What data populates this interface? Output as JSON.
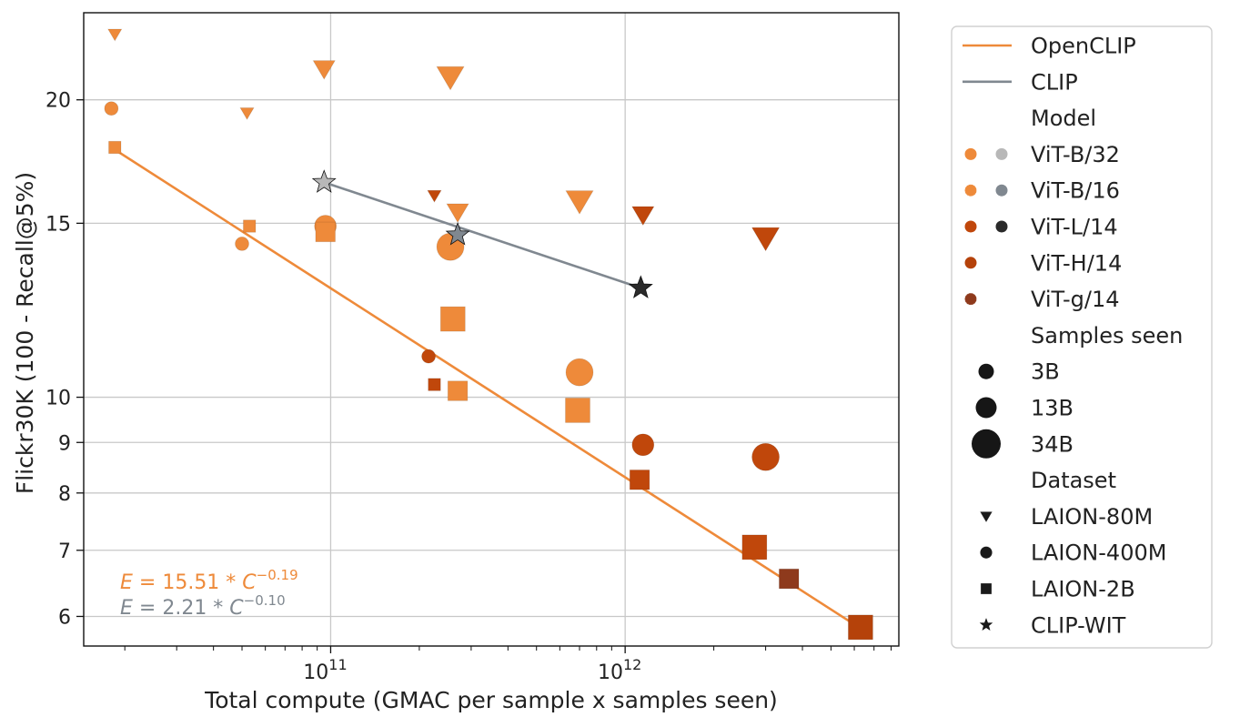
{
  "chart_data": {
    "type": "scatter",
    "xlabel": "Total compute (GMAC per sample x samples seen)",
    "ylabel": "Flickr30K (100 - Recall@5%)",
    "xscale": "log",
    "yscale": "log",
    "xlim": [
      14500000000.0,
      8500000000000.0
    ],
    "ylim": [
      5.6,
      24.5
    ],
    "grid": true,
    "xticks": [
      {
        "value": 100000000000.0,
        "base": "10",
        "exp": "11"
      },
      {
        "value": 1000000000000.0,
        "base": "10",
        "exp": "12"
      }
    ],
    "yticks": [
      {
        "value": 6,
        "label": "6"
      },
      {
        "value": 7,
        "label": "7"
      },
      {
        "value": 8,
        "label": "8"
      },
      {
        "value": 9,
        "label": "9"
      },
      {
        "value": 10,
        "label": "10"
      },
      {
        "value": 15,
        "label": "15"
      },
      {
        "value": 20,
        "label": "20"
      }
    ],
    "colors": {
      "vit_b32_open": "#EE8A3A",
      "vit_b16_open": "#EE8A3A",
      "vit_l14_open": "#C0470B",
      "vit_h14_open": "#B5420A",
      "vit_g14_open": "#8E3A1C",
      "vit_b32_clip": "#B8B8B8",
      "vit_b16_clip": "#808890",
      "vit_l14_clip": "#2A2A2A",
      "openclip_line": "#EE8A3A",
      "clip_line": "#808890"
    },
    "fit_lines": [
      {
        "name": "OpenCLIP",
        "color": "#EE8A3A",
        "x": [
          18000000000.0,
          6500000000000.0
        ],
        "y": [
          17.9,
          5.8
        ]
      },
      {
        "name": "CLIP",
        "color": "#808890",
        "x": [
          95000000000.0,
          1130000000000.0
        ],
        "y": [
          16.5,
          12.9
        ]
      }
    ],
    "equations": [
      {
        "lhs": "E",
        "rest": " = 15.51 * ",
        "var": "C",
        "exp": "−0.19",
        "color": "#EE8A3A",
        "italic": true
      },
      {
        "lhs": "E",
        "rest": " = 2.21 * ",
        "var": "C",
        "exp": "−0.10",
        "color": "#808890",
        "italic": false
      }
    ],
    "points": [
      {
        "model": "ViT-B/32",
        "samples": "3B",
        "dataset": "LAION-80M",
        "x": 18500000000.0,
        "y": 23.3,
        "color": "#EE8A3A"
      },
      {
        "model": "ViT-B/32",
        "samples": "3B",
        "dataset": "LAION-400M",
        "x": 18000000000.0,
        "y": 19.6,
        "color": "#EE8A3A"
      },
      {
        "model": "ViT-B/32",
        "samples": "3B",
        "dataset": "LAION-2B",
        "x": 18500000000.0,
        "y": 17.9,
        "color": "#EE8A3A"
      },
      {
        "model": "ViT-B/16",
        "samples": "3B",
        "dataset": "LAION-80M",
        "x": 52000000000.0,
        "y": 19.4,
        "color": "#EE8A3A"
      },
      {
        "model": "ViT-B/16",
        "samples": "3B",
        "dataset": "LAION-400M",
        "x": 50000000000.0,
        "y": 14.3,
        "color": "#EE8A3A"
      },
      {
        "model": "ViT-B/16",
        "samples": "3B",
        "dataset": "LAION-2B",
        "x": 53000000000.0,
        "y": 14.9,
        "color": "#EE8A3A"
      },
      {
        "model": "ViT-B/32",
        "samples": "13B",
        "dataset": "LAION-80M",
        "x": 95000000000.0,
        "y": 21.5,
        "color": "#EE8A3A"
      },
      {
        "model": "ViT-B/32",
        "samples": "13B",
        "dataset": "LAION-400M",
        "x": 96000000000.0,
        "y": 14.9,
        "color": "#EE8A3A"
      },
      {
        "model": "ViT-B/32",
        "samples": "13B",
        "dataset": "LAION-2B",
        "x": 96000000000.0,
        "y": 14.7,
        "color": "#EE8A3A"
      },
      {
        "model": "ViT-B/32",
        "samples": "34B",
        "dataset": "LAION-80M",
        "x": 255000000000.0,
        "y": 21.1,
        "color": "#EE8A3A"
      },
      {
        "model": "ViT-B/32",
        "samples": "34B",
        "dataset": "LAION-400M",
        "x": 255000000000.0,
        "y": 14.2,
        "color": "#EE8A3A"
      },
      {
        "model": "ViT-B/32",
        "samples": "34B",
        "dataset": "LAION-2B",
        "x": 260000000000.0,
        "y": 12.0,
        "color": "#EE8A3A"
      },
      {
        "model": "ViT-L/14",
        "samples": "3B",
        "dataset": "LAION-80M",
        "x": 225000000000.0,
        "y": 16.0,
        "color": "#C0470B"
      },
      {
        "model": "ViT-L/14",
        "samples": "3B",
        "dataset": "LAION-400M",
        "x": 215000000000.0,
        "y": 11.0,
        "color": "#C0470B"
      },
      {
        "model": "ViT-L/14",
        "samples": "3B",
        "dataset": "LAION-2B",
        "x": 225000000000.0,
        "y": 10.3,
        "color": "#C0470B"
      },
      {
        "model": "ViT-B/16",
        "samples": "13B",
        "dataset": "LAION-80M",
        "x": 270000000000.0,
        "y": 15.4,
        "color": "#EE8A3A"
      },
      {
        "model": "ViT-B/16",
        "samples": "13B",
        "dataset": "LAION-2B",
        "x": 270000000000.0,
        "y": 10.15,
        "color": "#EE8A3A"
      },
      {
        "model": "ViT-B/16",
        "samples": "34B",
        "dataset": "LAION-80M",
        "x": 700000000000.0,
        "y": 15.8,
        "color": "#EE8A3A"
      },
      {
        "model": "ViT-B/16",
        "samples": "34B",
        "dataset": "LAION-400M",
        "x": 700000000000.0,
        "y": 10.6,
        "color": "#EE8A3A"
      },
      {
        "model": "ViT-B/16",
        "samples": "34B",
        "dataset": "LAION-2B",
        "x": 690000000000.0,
        "y": 9.7,
        "color": "#EE8A3A"
      },
      {
        "model": "ViT-L/14",
        "samples": "13B",
        "dataset": "LAION-80M",
        "x": 1150000000000.0,
        "y": 15.3,
        "color": "#C0470B"
      },
      {
        "model": "ViT-L/14",
        "samples": "13B",
        "dataset": "LAION-400M",
        "x": 1150000000000.0,
        "y": 8.95,
        "color": "#C0470B"
      },
      {
        "model": "ViT-L/14",
        "samples": "13B",
        "dataset": "LAION-2B",
        "x": 1120000000000.0,
        "y": 8.25,
        "color": "#C0470B"
      },
      {
        "model": "ViT-L/14",
        "samples": "34B",
        "dataset": "LAION-80M",
        "x": 3000000000000.0,
        "y": 14.5,
        "color": "#C0470B"
      },
      {
        "model": "ViT-L/14",
        "samples": "34B",
        "dataset": "LAION-400M",
        "x": 3000000000000.0,
        "y": 8.7,
        "color": "#C0470B"
      },
      {
        "model": "ViT-L/14",
        "samples": "34B",
        "dataset": "LAION-2B",
        "x": 2750000000000.0,
        "y": 7.05,
        "color": "#C0470B"
      },
      {
        "model": "ViT-H/14",
        "samples": "34B",
        "dataset": "LAION-2B",
        "x": 6300000000000.0,
        "y": 5.85,
        "color": "#B5420A"
      },
      {
        "model": "ViT-g/14",
        "samples": "13B",
        "dataset": "LAION-2B",
        "x": 3600000000000.0,
        "y": 6.55,
        "color": "#8E3A1C"
      },
      {
        "model": "ViT-B/32",
        "samples": "",
        "dataset": "CLIP-WIT",
        "x": 95000000000.0,
        "y": 16.5,
        "color": "#B8B8B8"
      },
      {
        "model": "ViT-B/16",
        "samples": "",
        "dataset": "CLIP-WIT",
        "x": 270000000000.0,
        "y": 14.6,
        "color": "#808890"
      },
      {
        "model": "ViT-L/14",
        "samples": "",
        "dataset": "CLIP-WIT",
        "x": 1130000000000.0,
        "y": 12.9,
        "color": "#2A2A2A"
      }
    ],
    "legend": {
      "placement": "outside-right",
      "entries": [
        {
          "kind": "line",
          "label": "OpenCLIP",
          "color": "#EE8A3A"
        },
        {
          "kind": "line",
          "label": "CLIP",
          "color": "#808890"
        },
        {
          "kind": "header",
          "label": "Model"
        },
        {
          "kind": "model",
          "label": "ViT-B/32",
          "color": "#EE8A3A",
          "color2": "#B8B8B8"
        },
        {
          "kind": "model",
          "label": "ViT-B/16",
          "color": "#EE8A3A",
          "color2": "#808890",
          "dotted": true
        },
        {
          "kind": "model",
          "label": "ViT-L/14",
          "color": "#C0470B",
          "color2": "#2A2A2A"
        },
        {
          "kind": "model",
          "label": "ViT-H/14",
          "color": "#B5420A"
        },
        {
          "kind": "model",
          "label": "ViT-g/14",
          "color": "#8E3A1C",
          "dotted": true
        },
        {
          "kind": "header",
          "label": "Samples seen"
        },
        {
          "kind": "size",
          "label": "3B",
          "size": "3B"
        },
        {
          "kind": "size",
          "label": "13B",
          "size": "13B"
        },
        {
          "kind": "size",
          "label": "34B",
          "size": "34B"
        },
        {
          "kind": "header",
          "label": "Dataset"
        },
        {
          "kind": "marker",
          "label": "LAION-80M",
          "marker": "triangle"
        },
        {
          "kind": "marker",
          "label": "LAION-400M",
          "marker": "circle"
        },
        {
          "kind": "marker",
          "label": "LAION-2B",
          "marker": "square"
        },
        {
          "kind": "marker",
          "label": "CLIP-WIT",
          "marker": "star"
        }
      ]
    }
  }
}
